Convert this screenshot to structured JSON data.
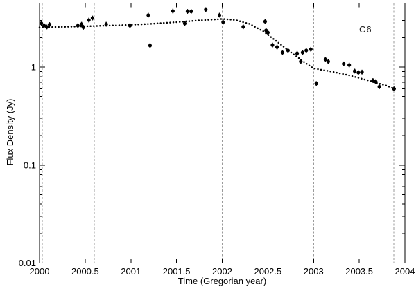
{
  "figure": {
    "background": "#ffffff"
  },
  "chart_data": {
    "type": "scatter",
    "title": "",
    "xlabel": "Time (Gregorian year)",
    "ylabel": "Flux Density (Jy)",
    "annotation": {
      "text": "C6",
      "x": 2003.57,
      "y": 2.45
    },
    "xlim": [
      2000,
      2004
    ],
    "ylim": [
      0.01,
      4.5
    ],
    "yscale": "log",
    "grid": false,
    "legend": "none",
    "colors": {
      "frame": "#000000",
      "points": "#000000",
      "trend": "#000000",
      "vlines": "#9a9a9a",
      "text": "#000000"
    },
    "xticks": {
      "values": [
        2000,
        2000.5,
        2001,
        2001.5,
        2002,
        2002.5,
        2003,
        2003.5,
        2004
      ],
      "labels": [
        "2000",
        "2000.5",
        "2001",
        "2001.5",
        "2002",
        "2002.5",
        "2003",
        "2003.5",
        "2004"
      ]
    },
    "yticks": {
      "values": [
        1,
        0.1,
        0.01
      ],
      "labels": [
        "1",
        "0.1",
        "0.01"
      ]
    },
    "vlines": {
      "style": "dashed",
      "x": [
        2000.03,
        2000.6,
        2002.0,
        2003.0,
        2003.88
      ]
    },
    "trend": {
      "name": "model fit",
      "style": "dotted",
      "points": [
        [
          2000.0,
          2.55
        ],
        [
          2000.3,
          2.58
        ],
        [
          2000.6,
          2.63
        ],
        [
          2000.9,
          2.68
        ],
        [
          2001.2,
          2.76
        ],
        [
          2001.5,
          2.88
        ],
        [
          2001.75,
          3.0
        ],
        [
          2002.0,
          3.1
        ],
        [
          2002.15,
          3.02
        ],
        [
          2002.3,
          2.76
        ],
        [
          2002.45,
          2.32
        ],
        [
          2002.6,
          1.82
        ],
        [
          2002.75,
          1.42
        ],
        [
          2002.9,
          1.12
        ],
        [
          2003.0,
          0.97
        ],
        [
          2003.2,
          0.9
        ],
        [
          2003.4,
          0.82
        ],
        [
          2003.6,
          0.73
        ],
        [
          2003.8,
          0.645
        ],
        [
          2003.92,
          0.585
        ]
      ]
    },
    "series": [
      {
        "name": "flux density measurements",
        "marker": "filled-circle",
        "points": [
          [
            2000.02,
            2.8
          ],
          [
            2000.05,
            2.65
          ],
          [
            2000.08,
            2.57
          ],
          [
            2000.11,
            2.72
          ],
          [
            2000.42,
            2.65
          ],
          [
            2000.46,
            2.74
          ],
          [
            2000.48,
            2.55
          ],
          [
            2000.54,
            3.02
          ],
          [
            2000.58,
            3.17
          ],
          [
            2000.73,
            2.74
          ],
          [
            2000.99,
            2.65
          ],
          [
            2001.19,
            3.39
          ],
          [
            2001.21,
            1.66
          ],
          [
            2001.46,
            3.73
          ],
          [
            2001.59,
            2.79
          ],
          [
            2001.62,
            3.7
          ],
          [
            2001.66,
            3.7
          ],
          [
            2001.82,
            3.86
          ],
          [
            2001.97,
            3.39
          ],
          [
            2002.01,
            2.88
          ],
          [
            2002.23,
            2.58
          ],
          [
            2002.47,
            2.92
          ],
          [
            2002.48,
            2.37
          ],
          [
            2002.5,
            2.25
          ],
          [
            2002.55,
            1.68
          ],
          [
            2002.6,
            1.6
          ],
          [
            2002.66,
            1.41
          ],
          [
            2002.72,
            1.48
          ],
          [
            2002.82,
            1.38
          ],
          [
            2002.86,
            1.14
          ],
          [
            2002.88,
            1.41
          ],
          [
            2002.92,
            1.48
          ],
          [
            2002.97,
            1.52
          ],
          [
            2003.03,
            0.68
          ],
          [
            2003.13,
            1.2
          ],
          [
            2003.16,
            1.14
          ],
          [
            2003.33,
            1.08
          ],
          [
            2003.39,
            1.05
          ],
          [
            2003.45,
            0.91
          ],
          [
            2003.49,
            0.88
          ],
          [
            2003.53,
            0.89
          ],
          [
            2003.65,
            0.73
          ],
          [
            2003.68,
            0.71
          ],
          [
            2003.72,
            0.63
          ],
          [
            2003.88,
            0.6
          ]
        ]
      }
    ]
  }
}
